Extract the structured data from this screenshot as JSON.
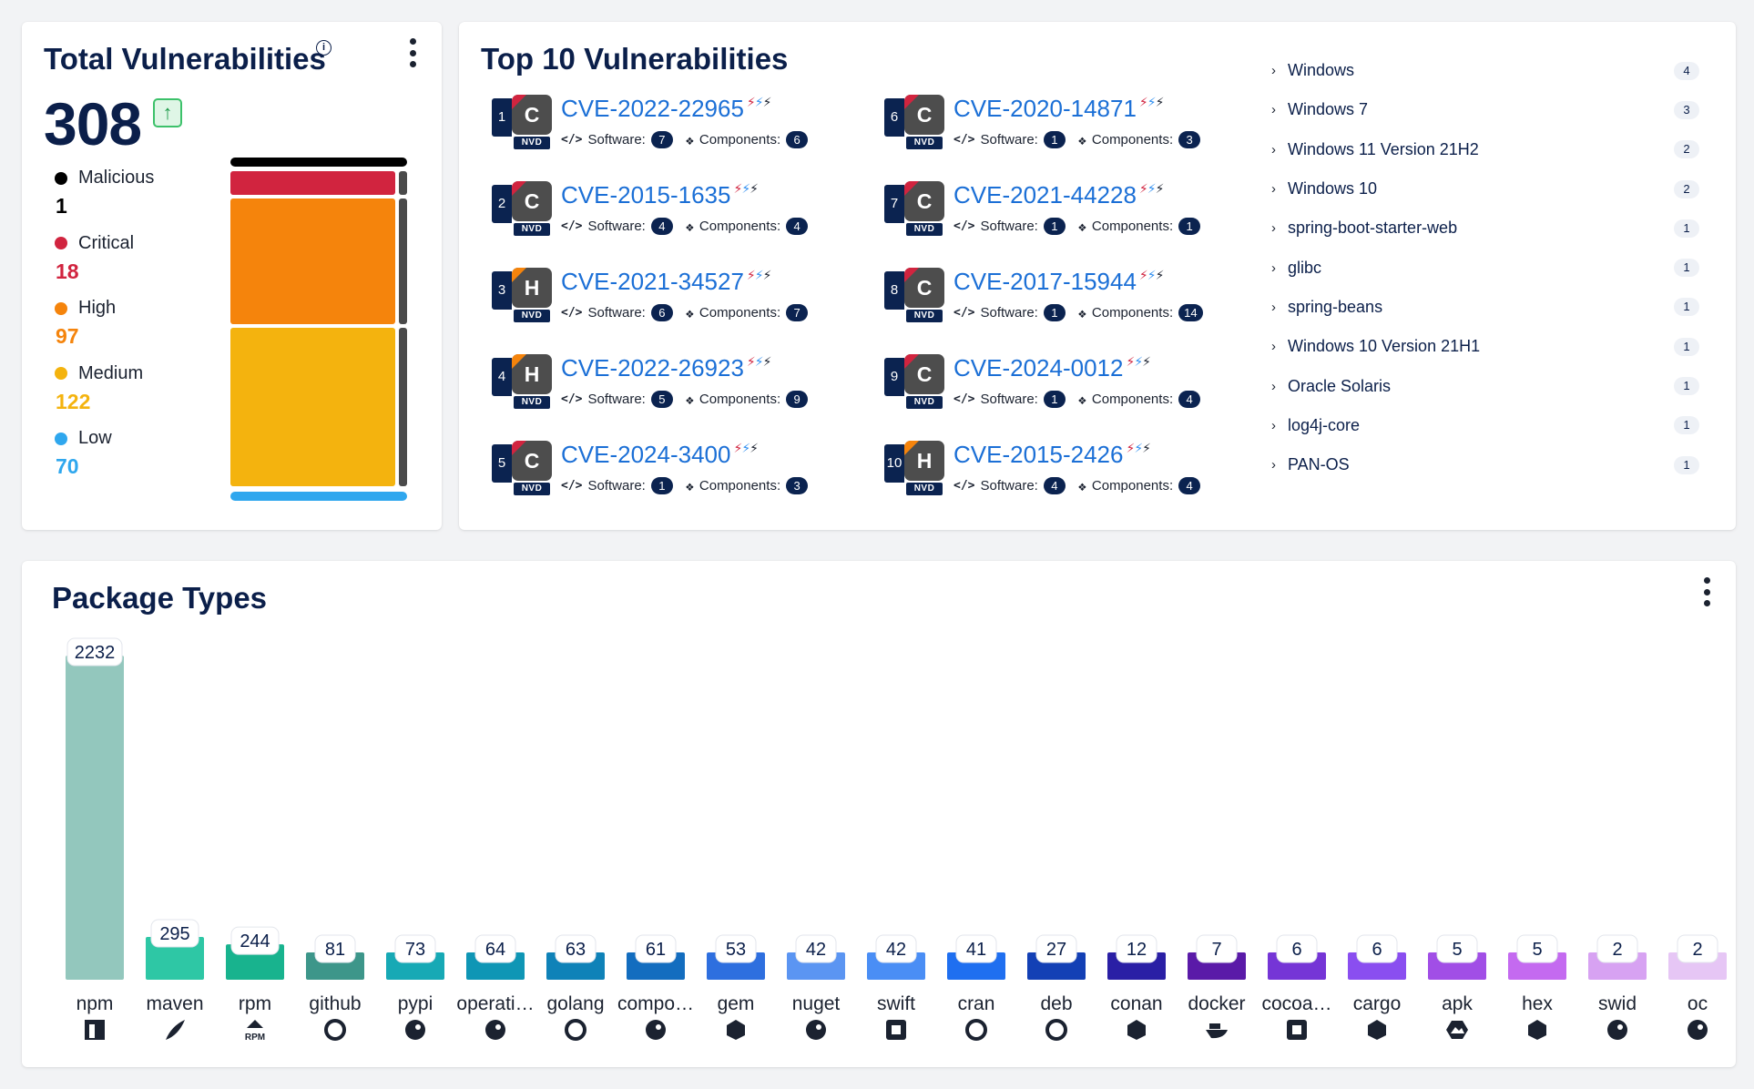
{
  "total_card": {
    "title": "Total Vulnerabilities",
    "info_icon": "i",
    "total": "308",
    "trend_icon": "↑",
    "severities": [
      {
        "name": "Malicious",
        "count": "1",
        "value": 1,
        "color": "#000000"
      },
      {
        "name": "Critical",
        "count": "18",
        "value": 18,
        "color": "#d1243f"
      },
      {
        "name": "High",
        "count": "97",
        "value": 97,
        "color": "#f5840c"
      },
      {
        "name": "Medium",
        "count": "122",
        "value": 122,
        "color": "#f4b30e"
      },
      {
        "name": "Low",
        "count": "70",
        "value": 70,
        "color": "#2fa7ee"
      }
    ]
  },
  "top10_card": {
    "title": "Top 10 Vulnerabilities",
    "software_label": "Software:",
    "components_label": "Components:",
    "source_label": "NVD",
    "bolts": "⚡⚡⚡",
    "items": [
      {
        "rank": "1",
        "sev": "C",
        "id": "CVE-2022-22965",
        "software": "7",
        "components": "6"
      },
      {
        "rank": "2",
        "sev": "C",
        "id": "CVE-2015-1635",
        "software": "4",
        "components": "4"
      },
      {
        "rank": "3",
        "sev": "H",
        "id": "CVE-2021-34527",
        "software": "6",
        "components": "7"
      },
      {
        "rank": "4",
        "sev": "H",
        "id": "CVE-2022-26923",
        "software": "5",
        "components": "9"
      },
      {
        "rank": "5",
        "sev": "C",
        "id": "CVE-2024-3400",
        "software": "1",
        "components": "3"
      },
      {
        "rank": "6",
        "sev": "C",
        "id": "CVE-2020-14871",
        "software": "1",
        "components": "3"
      },
      {
        "rank": "7",
        "sev": "C",
        "id": "CVE-2021-44228",
        "software": "1",
        "components": "1"
      },
      {
        "rank": "8",
        "sev": "C",
        "id": "CVE-2017-15944",
        "software": "1",
        "components": "14"
      },
      {
        "rank": "9",
        "sev": "C",
        "id": "CVE-2024-0012",
        "software": "1",
        "components": "4"
      },
      {
        "rank": "10",
        "sev": "H",
        "id": "CVE-2015-2426",
        "software": "4",
        "components": "4"
      }
    ],
    "products": [
      {
        "name": "Windows",
        "count": "4"
      },
      {
        "name": "Windows 7",
        "count": "3"
      },
      {
        "name": "Windows 11 Version 21H2",
        "count": "2"
      },
      {
        "name": "Windows 10",
        "count": "2"
      },
      {
        "name": "spring-boot-starter-web",
        "count": "1"
      },
      {
        "name": "glibc",
        "count": "1"
      },
      {
        "name": "spring-beans",
        "count": "1"
      },
      {
        "name": "Windows 10 Version 21H1",
        "count": "1"
      },
      {
        "name": "Oracle Solaris",
        "count": "1"
      },
      {
        "name": "log4j-core",
        "count": "1"
      },
      {
        "name": "PAN-OS",
        "count": "1"
      }
    ],
    "colors": {
      "critical": "#d1243f",
      "high": "#f5840c"
    }
  },
  "package_card": {
    "title": "Package Types"
  },
  "chart_data": {
    "type": "bar",
    "title": "Package Types",
    "categories": [
      "npm",
      "maven",
      "rpm",
      "github",
      "pypi",
      "operati…",
      "golang",
      "compo…",
      "gem",
      "nuget",
      "swift",
      "cran",
      "deb",
      "conan",
      "docker",
      "cocoa…",
      "cargo",
      "apk",
      "hex",
      "swid",
      "oc"
    ],
    "values": [
      2232,
      295,
      244,
      81,
      73,
      64,
      63,
      61,
      53,
      42,
      42,
      41,
      27,
      12,
      7,
      6,
      6,
      5,
      5,
      2,
      2
    ],
    "value_labels": [
      "2232",
      "295",
      "244",
      "81",
      "73",
      "64",
      "63",
      "61",
      "53",
      "42",
      "42",
      "41",
      "27",
      "12",
      "7",
      "6",
      "6",
      "5",
      "5",
      "2",
      "2"
    ],
    "icons": [
      "npm-icon",
      "maven-feather-icon",
      "rpm-icon",
      "github-icon",
      "python-icon",
      "os-package-icon",
      "go-icon",
      "composer-icon",
      "gem-icon",
      "nuget-icon",
      "swift-icon",
      "r-icon",
      "debian-icon",
      "conan-icon",
      "docker-icon",
      "cocoapods-icon",
      "cargo-icon",
      "alpine-icon",
      "hex-icon",
      "swid-icon",
      "oci-package-icon"
    ],
    "colors": [
      "#93c7bd",
      "#2ec7a5",
      "#18b38e",
      "#3d968a",
      "#17a9b5",
      "#0f96b5",
      "#0f82b8",
      "#136dbf",
      "#2e6fdf",
      "#5b95f2",
      "#4a8ef5",
      "#1f6ff0",
      "#1340b5",
      "#2a1fa5",
      "#5a1aa8",
      "#7535d6",
      "#8a4ef0",
      "#a14ee6",
      "#c46af0",
      "#d7a2f2",
      "#e6c6f5"
    ],
    "xlabel": "",
    "ylabel": "",
    "ylim": [
      0,
      2232
    ],
    "grid": false,
    "legend": "none"
  }
}
